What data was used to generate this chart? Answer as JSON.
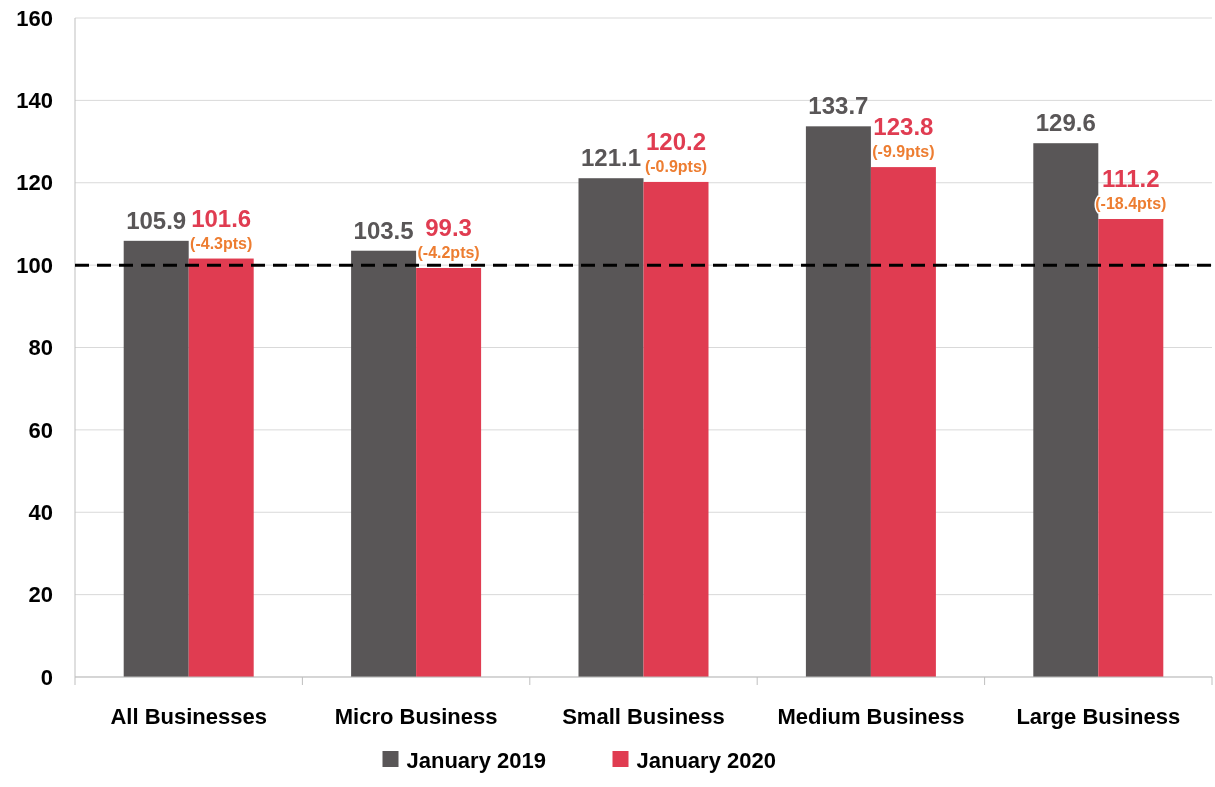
{
  "chart_data": {
    "type": "bar",
    "categories": [
      "All Businesses",
      "Micro Business",
      "Small Business",
      "Medium Business",
      "Large Business"
    ],
    "series": [
      {
        "name": "January 2019",
        "color": "#595657",
        "values": [
          105.9,
          103.5,
          121.1,
          133.7,
          129.6
        ]
      },
      {
        "name": "January 2020",
        "color": "#e03c51",
        "values": [
          101.6,
          99.3,
          120.2,
          123.8,
          111.2
        ]
      }
    ],
    "ylim": [
      0,
      160
    ],
    "yticks": [
      0,
      20,
      40,
      60,
      80,
      100,
      120,
      140,
      160
    ],
    "grid": "y",
    "legend": "bottom",
    "data_labels": true,
    "ref_lines": [
      {
        "axis": "y",
        "value": 100,
        "label": null,
        "color": "#000000",
        "line_style": "dashed"
      }
    ],
    "annotations": [
      {
        "text": "(-4.3pts)",
        "x": "All Businesses",
        "y": 101.6
      },
      {
        "text": "(-4.2pts)",
        "x": "Micro Business",
        "y": 99.3
      },
      {
        "text": "(-0.9pts)",
        "x": "Small Business",
        "y": 120.2
      },
      {
        "text": "(-9.9pts)",
        "x": "Medium Business",
        "y": 123.8
      },
      {
        "text": "(-18.4pts)",
        "x": "Large Business",
        "y": 111.2
      }
    ]
  }
}
